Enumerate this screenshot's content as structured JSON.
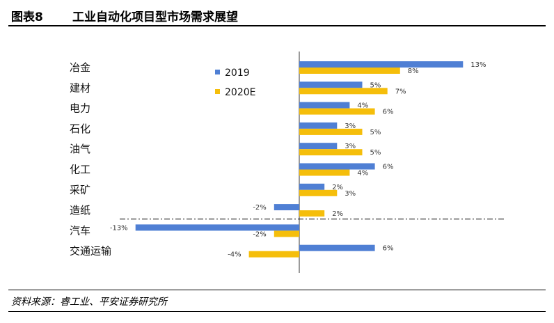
{
  "header": {
    "figure_no": "图表8",
    "title": "工业自动化项目型市场需求展望"
  },
  "footer": {
    "source": "资料来源：睿工业、平安证券研究所"
  },
  "colors": {
    "s2019": "#4F7FD4",
    "s2020": "#F5BE0B"
  },
  "chart_data": {
    "type": "bar",
    "orientation": "horizontal",
    "categories": [
      "冶金",
      "建材",
      "电力",
      "石化",
      "油气",
      "化工",
      "采矿",
      "造纸",
      "汽车",
      "交通运输"
    ],
    "series": [
      {
        "name": "2019",
        "values": [
          13,
          5,
          4,
          3,
          3,
          6,
          2,
          -2,
          -13,
          6
        ],
        "labels": [
          "13%",
          "5%",
          "4%",
          "3%",
          "3%",
          "6%",
          "2%",
          "-2%",
          "-13%",
          "6%"
        ]
      },
      {
        "name": "2020E",
        "values": [
          8,
          7,
          6,
          5,
          5,
          4,
          3,
          2,
          -2,
          -4
        ],
        "labels": [
          "8%",
          "7%",
          "6%",
          "5%",
          "5%",
          "4%",
          "3%",
          "2%",
          "-2%",
          "-4%"
        ]
      }
    ],
    "xlim": [
      -13,
      13
    ],
    "legend": "top-left",
    "grid": false
  }
}
